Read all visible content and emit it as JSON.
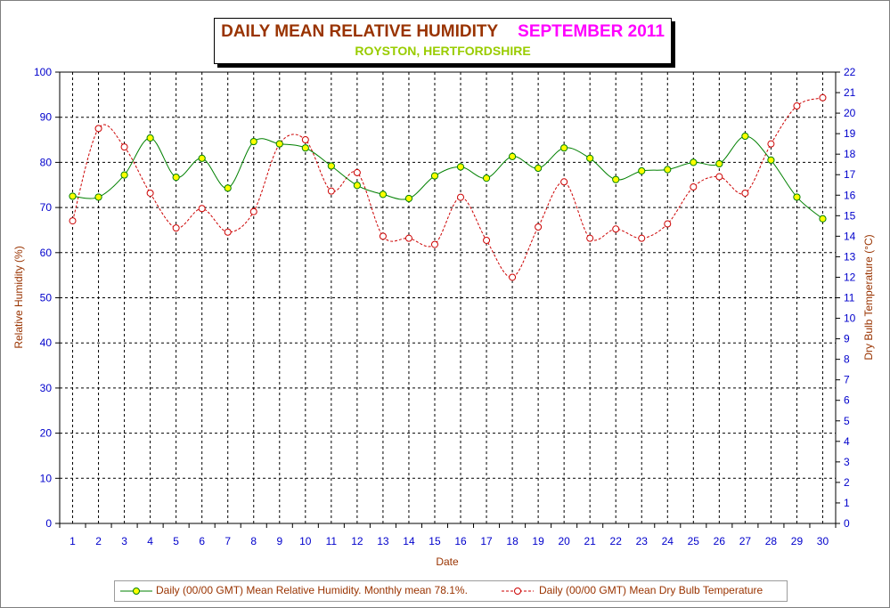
{
  "title": {
    "main": "DAILY MEAN RELATIVE HUMIDITY",
    "month": "SEPTEMBER 2011",
    "subtitle": "ROYSTON, HERTFORDSHIRE"
  },
  "colors": {
    "humidity_line": "#008000",
    "humidity_marker": "#ffff00",
    "temperature_line": "#cc0000",
    "temperature_marker": "#ffffff",
    "axis_text": "#0000cc",
    "axis_title": "#993300",
    "frame_border": "#7f7f7f"
  },
  "chart_data": {
    "type": "line",
    "xlabel": "Date",
    "ylabel": "Relative Humidity (%)",
    "y2label": "Dry Bulb Temperature (°C)",
    "ylim": [
      0,
      100
    ],
    "y2lim": [
      0,
      22
    ],
    "yticks": [
      0,
      10,
      20,
      30,
      40,
      50,
      60,
      70,
      80,
      90,
      100
    ],
    "y2ticks": [
      0,
      1,
      2,
      3,
      4,
      5,
      6,
      7,
      8,
      9,
      10,
      11,
      12,
      13,
      14,
      15,
      16,
      17,
      18,
      19,
      20,
      21,
      22
    ],
    "grid": true,
    "legend_position": "bottom",
    "x": [
      1,
      2,
      3,
      4,
      5,
      6,
      7,
      8,
      9,
      10,
      11,
      12,
      13,
      14,
      15,
      16,
      17,
      18,
      19,
      20,
      21,
      22,
      23,
      24,
      25,
      26,
      27,
      28,
      29,
      30
    ],
    "series": [
      {
        "name": "Daily (00/00 GMT) Mean Relative Humidity. Monthly mean 78.1%.",
        "axis": "left",
        "style": "solid",
        "values": [
          72.5,
          72.3,
          77.2,
          85.4,
          76.7,
          80.9,
          74.3,
          84.6,
          84.1,
          83.2,
          79.2,
          74.9,
          72.9,
          72.0,
          77.0,
          79.0,
          76.5,
          81.3,
          78.7,
          83.2,
          80.9,
          76.2,
          78.1,
          78.4,
          80.0,
          79.7,
          85.8,
          80.5,
          72.3,
          67.5
        ]
      },
      {
        "name": "Daily (00/00 GMT) Mean Dry Bulb Temperature",
        "axis": "right",
        "style": "dashed",
        "values": [
          14.75,
          19.25,
          18.35,
          16.1,
          14.4,
          15.35,
          14.2,
          15.2,
          18.5,
          18.7,
          16.2,
          17.1,
          14.0,
          13.9,
          13.6,
          15.9,
          13.8,
          12.0,
          14.45,
          16.65,
          13.9,
          14.35,
          13.9,
          14.6,
          16.4,
          16.9,
          16.1,
          18.5,
          20.35,
          20.75
        ]
      }
    ]
  }
}
